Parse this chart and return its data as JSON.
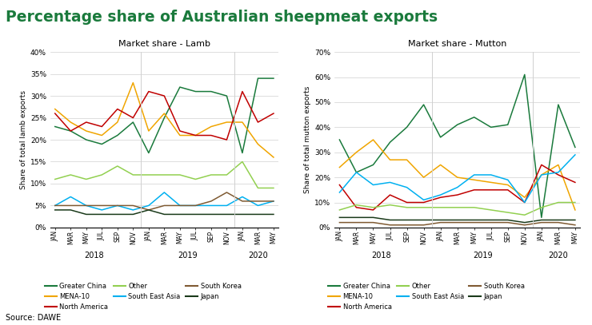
{
  "title": "Percentage share of Australian sheepmeat exports",
  "title_color": "#1a7a3c",
  "lamb_title": "Market share - Lamb",
  "mutton_title": "Market share - Mutton",
  "lamb_ylabel": "Share of total lamb exports",
  "mutton_ylabel": "Share of total mutton exports",
  "source": "Source: DAWE",
  "x_labels": [
    "JAN",
    "MAR",
    "MAY",
    "JUL",
    "SEP",
    "NOV",
    "JAN",
    "MAR",
    "MAY",
    "JUL",
    "SEP",
    "NOV",
    "JAN",
    "MAR",
    "MAY"
  ],
  "colors": {
    "Greater China": "#1a7a3c",
    "MENA-10": "#f0a500",
    "North America": "#c00000",
    "Other": "#92d050",
    "South East Asia": "#00b0f0",
    "South Korea": "#7f5a32",
    "Japan": "#1a3a1a"
  },
  "legend_order": [
    "Greater China",
    "MENA-10",
    "North America",
    "Other",
    "South East Asia",
    "South Korea",
    "Japan"
  ],
  "lamb": {
    "Greater China": [
      23,
      22,
      20,
      19,
      21,
      24,
      17,
      25,
      32,
      31,
      31,
      30,
      17,
      34,
      34
    ],
    "MENA-10": [
      27,
      24,
      22,
      21,
      24,
      33,
      22,
      26,
      21,
      21,
      23,
      24,
      24,
      19,
      16
    ],
    "North America": [
      26,
      22,
      24,
      23,
      27,
      25,
      31,
      30,
      22,
      21,
      21,
      20,
      31,
      24,
      26
    ],
    "Other": [
      11,
      12,
      11,
      12,
      14,
      12,
      12,
      12,
      12,
      11,
      12,
      12,
      15,
      9,
      9
    ],
    "South East Asia": [
      5,
      7,
      5,
      4,
      5,
      4,
      5,
      8,
      5,
      5,
      5,
      5,
      7,
      5,
      6
    ],
    "South Korea": [
      5,
      5,
      5,
      5,
      5,
      5,
      4,
      5,
      5,
      5,
      6,
      8,
      6,
      6,
      6
    ],
    "Japan": [
      4,
      4,
      3,
      3,
      3,
      3,
      4,
      3,
      3,
      3,
      3,
      3,
      3,
      3,
      3
    ]
  },
  "mutton": {
    "Greater China": [
      35,
      22,
      25,
      34,
      40,
      49,
      36,
      41,
      44,
      40,
      41,
      61,
      4,
      49,
      32
    ],
    "MENA-10": [
      24,
      30,
      35,
      27,
      27,
      20,
      25,
      20,
      19,
      18,
      17,
      12,
      21,
      25,
      7
    ],
    "North America": [
      17,
      8,
      7,
      13,
      10,
      10,
      12,
      13,
      15,
      15,
      15,
      10,
      25,
      21,
      18
    ],
    "Other": [
      7,
      9,
      8,
      9,
      8,
      8,
      8,
      8,
      8,
      7,
      6,
      5,
      8,
      10,
      10
    ],
    "South East Asia": [
      14,
      22,
      17,
      18,
      16,
      11,
      13,
      16,
      21,
      21,
      19,
      10,
      21,
      22,
      29
    ],
    "South Korea": [
      2,
      2,
      2,
      1,
      1,
      1,
      2,
      2,
      2,
      2,
      2,
      1,
      2,
      2,
      1
    ],
    "Japan": [
      4,
      4,
      4,
      3,
      3,
      3,
      3,
      3,
      3,
      3,
      3,
      2,
      3,
      3,
      3
    ]
  }
}
